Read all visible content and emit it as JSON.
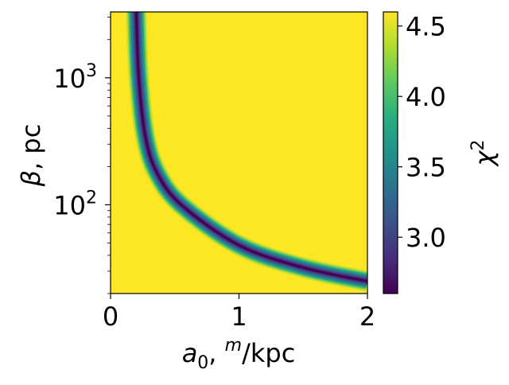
{
  "chart_data": {
    "type": "heatmap",
    "title": "",
    "xlabel": {
      "base": "a",
      "sub": "0",
      "mid": ", ",
      "sup": "m",
      "tail": "/kpc"
    },
    "ylabel": {
      "greek": "β",
      "tail": ", pc"
    },
    "colorbar_label": {
      "base": "χ",
      "sup": "2"
    },
    "x_range": [
      0,
      2
    ],
    "y_range": [
      20,
      3300
    ],
    "y_scale": "log",
    "c_range": [
      2.6,
      4.6
    ],
    "x_ticks": [
      {
        "value": 0,
        "label": "0"
      },
      {
        "value": 1,
        "label": "1"
      },
      {
        "value": 2,
        "label": "2"
      }
    ],
    "y_ticks": [
      {
        "value": 100,
        "base": "10",
        "exp": "2"
      },
      {
        "value": 1000,
        "base": "10",
        "exp": "3"
      }
    ],
    "c_ticks": [
      {
        "value": 3.0,
        "label": "3.0"
      },
      {
        "value": 3.5,
        "label": "3.5"
      },
      {
        "value": 4.0,
        "label": "4.0"
      },
      {
        "value": 4.5,
        "label": "4.5"
      }
    ],
    "colormap": "viridis",
    "valley": {
      "description": "minimum chi-squared along a curve",
      "points": [
        {
          "x": 0.2,
          "y": 3300
        },
        {
          "x": 0.22,
          "y": 1000
        },
        {
          "x": 0.27,
          "y": 350
        },
        {
          "x": 0.36,
          "y": 180
        },
        {
          "x": 0.55,
          "y": 100
        },
        {
          "x": 1.0,
          "y": 48
        },
        {
          "x": 1.5,
          "y": 32
        },
        {
          "x": 2.0,
          "y": 25
        }
      ],
      "min_value": 2.6,
      "background_value": 4.6
    }
  }
}
